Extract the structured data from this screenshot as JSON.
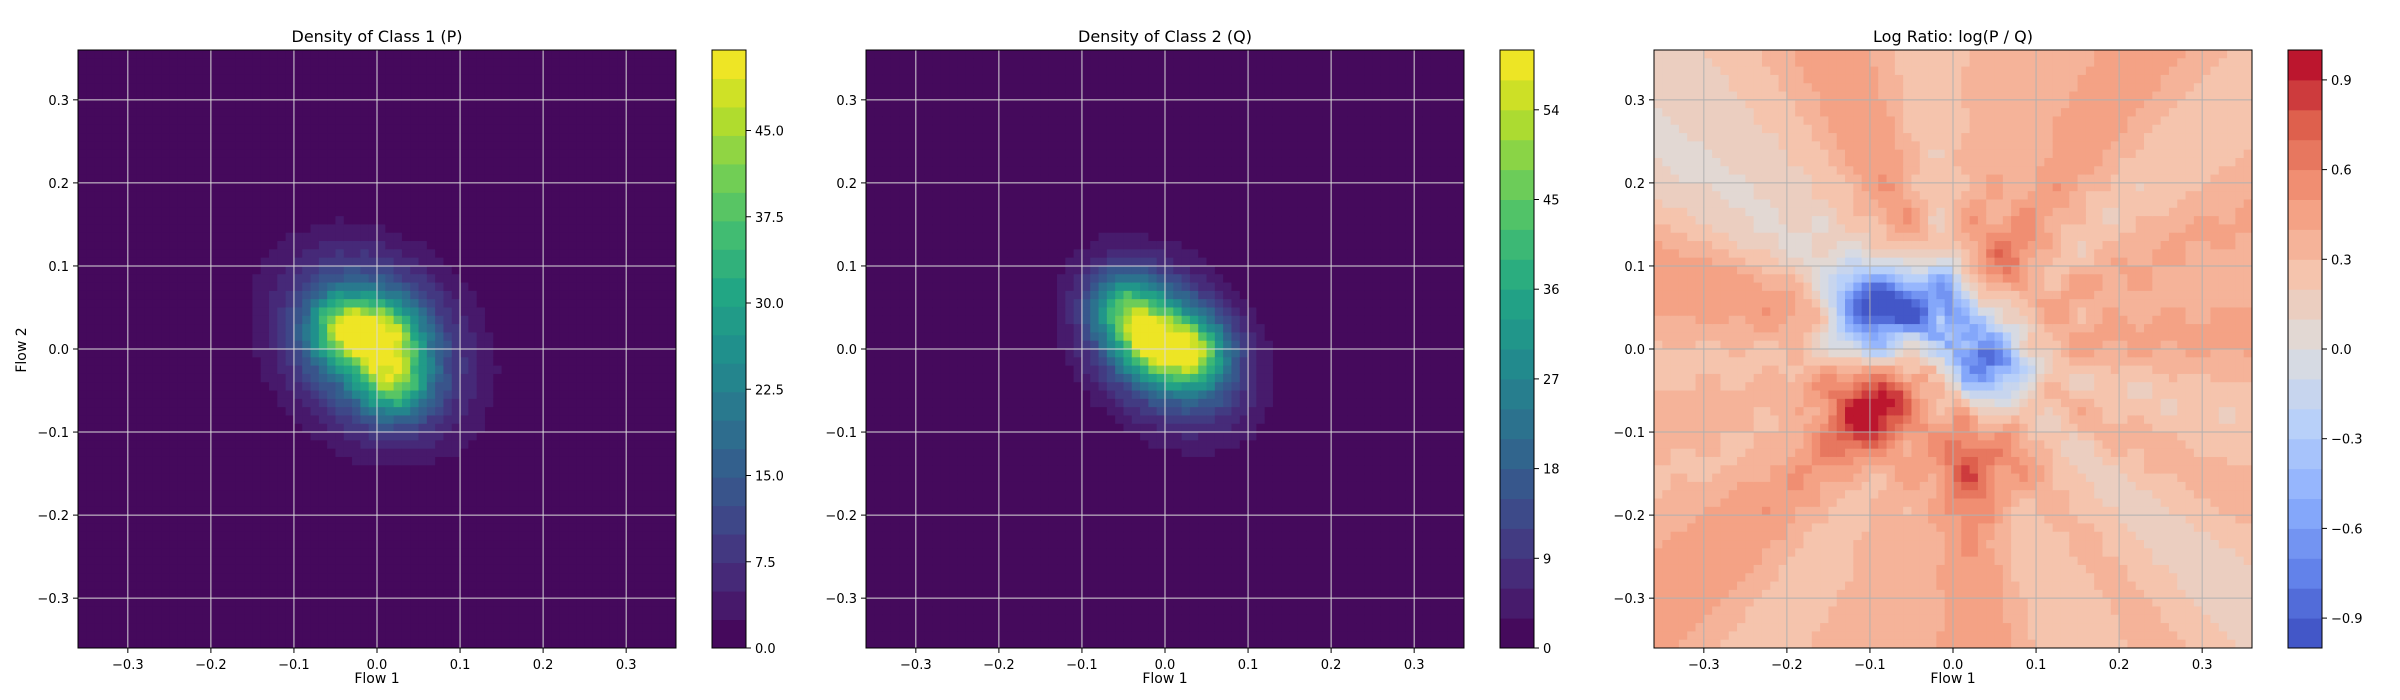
{
  "chart_data": [
    {
      "type": "heatmap",
      "title": "Density of Class 1 (P)",
      "xlabel": "Flow 1",
      "ylabel": "Flow 2",
      "xlim": [
        -0.36,
        0.36
      ],
      "ylim": [
        -0.36,
        0.36
      ],
      "xticks": [
        -0.3,
        -0.2,
        -0.1,
        0.0,
        0.1,
        0.2,
        0.3
      ],
      "xtick_labels": [
        "−0.3",
        "−0.2",
        "−0.1",
        "0.0",
        "0.1",
        "0.2",
        "0.3"
      ],
      "yticks": [
        -0.3,
        -0.2,
        -0.1,
        0.0,
        0.1,
        0.2,
        0.3
      ],
      "ytick_labels": [
        "−0.3",
        "−0.2",
        "−0.1",
        "0.0",
        "0.1",
        "0.2",
        "0.3"
      ],
      "grid": true,
      "colormap": "viridis",
      "colorbar": {
        "range": [
          0,
          52
        ],
        "ticks": [
          0,
          7.5,
          15,
          22.5,
          30,
          37.5,
          45
        ],
        "tick_labels": [
          "0.0",
          "7.5",
          "15.0",
          "22.5",
          "30.0",
          "37.5",
          "45.0"
        ]
      },
      "density_model": {
        "center": [
          -0.005,
          0.005
        ],
        "std_major": 0.075,
        "std_minor": 0.06,
        "orientation_deg": -45,
        "peak": 50,
        "peaks": [
          {
            "x": -0.04,
            "y": 0.025,
            "value": 50
          },
          {
            "x": 0.01,
            "y": 0.015,
            "value": 46
          },
          {
            "x": 0.02,
            "y": -0.04,
            "value": 44
          }
        ]
      }
    },
    {
      "type": "heatmap",
      "title": "Density of Class 2 (Q)",
      "xlabel": "Flow 1",
      "ylabel": "",
      "xlim": [
        -0.36,
        0.36
      ],
      "ylim": [
        -0.36,
        0.36
      ],
      "xticks": [
        -0.3,
        -0.2,
        -0.1,
        0.0,
        0.1,
        0.2,
        0.3
      ],
      "xtick_labels": [
        "−0.3",
        "−0.2",
        "−0.1",
        "0.0",
        "0.1",
        "0.2",
        "0.3"
      ],
      "yticks": [
        -0.3,
        -0.2,
        -0.1,
        0.0,
        0.1,
        0.2,
        0.3
      ],
      "ytick_labels": [
        "−0.3",
        "−0.2",
        "−0.1",
        "0.0",
        "0.1",
        "0.2",
        "0.3"
      ],
      "grid": true,
      "colormap": "viridis",
      "colorbar": {
        "range": [
          0,
          60
        ],
        "ticks": [
          0,
          9,
          18,
          27,
          36,
          45,
          54
        ],
        "tick_labels": [
          "0",
          "9",
          "18",
          "27",
          "36",
          "45",
          "54"
        ]
      },
      "density_model": {
        "center": [
          0.0,
          0.005
        ],
        "std_major": 0.07,
        "std_minor": 0.05,
        "orientation_deg": -45,
        "peak": 58,
        "peaks": [
          {
            "x": -0.015,
            "y": 0.01,
            "value": 58
          },
          {
            "x": 0.035,
            "y": -0.005,
            "value": 56
          },
          {
            "x": -0.05,
            "y": 0.05,
            "value": 46
          }
        ]
      }
    },
    {
      "type": "heatmap",
      "title": "Log Ratio: log(P / Q)",
      "xlabel": "Flow 1",
      "ylabel": "",
      "xlim": [
        -0.36,
        0.36
      ],
      "ylim": [
        -0.36,
        0.36
      ],
      "xticks": [
        -0.3,
        -0.2,
        -0.1,
        0.0,
        0.1,
        0.2,
        0.3
      ],
      "xtick_labels": [
        "−0.3",
        "−0.2",
        "−0.1",
        "0.0",
        "0.1",
        "0.2",
        "0.3"
      ],
      "yticks": [
        -0.3,
        -0.2,
        -0.1,
        0.0,
        0.1,
        0.2,
        0.3
      ],
      "ytick_labels": [
        "−0.3",
        "−0.2",
        "−0.1",
        "0.0",
        "0.1",
        "0.2",
        "0.3"
      ],
      "grid": true,
      "colormap": "coolwarm",
      "colorbar": {
        "range": [
          -1.0,
          1.0
        ],
        "ticks": [
          -0.9,
          -0.6,
          -0.3,
          0.0,
          0.3,
          0.6,
          0.9
        ],
        "tick_labels": [
          "−0.9",
          "−0.6",
          "−0.3",
          "0.0",
          "0.3",
          "0.6",
          "0.9"
        ]
      },
      "ratio_model": {
        "background": 0.35,
        "blue_regions": [
          {
            "x": -0.1,
            "y": 0.04,
            "value": -0.9
          },
          {
            "x": -0.02,
            "y": 0.06,
            "value": -0.6
          },
          {
            "x": 0.04,
            "y": -0.01,
            "value": -0.7
          }
        ],
        "red_regions": [
          {
            "x": -0.1,
            "y": -0.07,
            "value": 0.95
          },
          {
            "x": 0.04,
            "y": -0.14,
            "value": 0.7
          },
          {
            "x": 0.05,
            "y": 0.1,
            "value": 0.6
          }
        ]
      }
    }
  ]
}
